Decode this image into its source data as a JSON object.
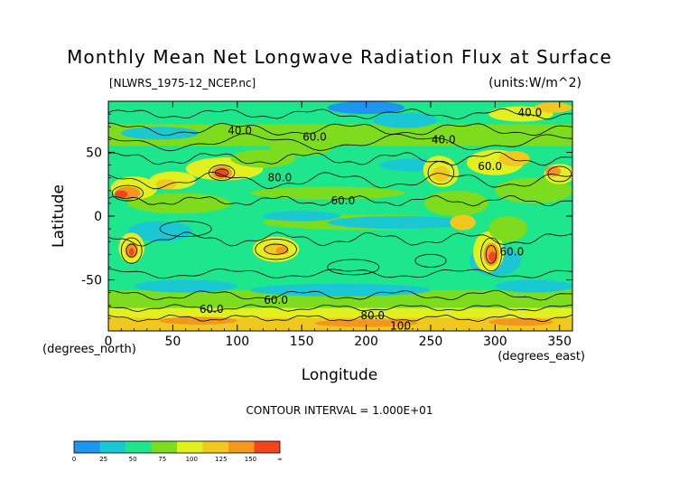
{
  "chart_data": {
    "type": "heatmap",
    "title": "Monthly Mean Net Longwave Radiation Flux at Surface",
    "source_label": "[NLWRS_1975-12_NCEP.nc]",
    "units_label": "(units:W/m^2)",
    "xlabel": "Longitude",
    "ylabel": "Latitude",
    "x_unit_label": "(degrees_east)",
    "y_unit_label": "(degrees_north)",
    "xlim": [
      0,
      360
    ],
    "ylim": [
      -90,
      90
    ],
    "x_ticks": [
      0,
      50,
      100,
      150,
      200,
      250,
      300,
      350
    ],
    "y_ticks": [
      -50,
      0,
      50
    ],
    "contour_interval_text": "CONTOUR INTERVAL = 1.000E+01",
    "contour_labels": [
      {
        "text": "40.0",
        "lon": 102,
        "lat": 67
      },
      {
        "text": "60.0",
        "lon": 160,
        "lat": 62
      },
      {
        "text": "40.0",
        "lon": 260,
        "lat": 60
      },
      {
        "text": "40.0",
        "lon": 327,
        "lat": 81
      },
      {
        "text": "60.0",
        "lon": 296,
        "lat": 39
      },
      {
        "text": "80.0",
        "lon": 133,
        "lat": 30
      },
      {
        "text": "60.0",
        "lon": 182,
        "lat": 12
      },
      {
        "text": "60.0",
        "lon": 130,
        "lat": -66
      },
      {
        "text": "60.0",
        "lon": 80,
        "lat": -73
      },
      {
        "text": "80.0",
        "lon": 205,
        "lat": -78
      },
      {
        "text": "100.",
        "lon": 228,
        "lat": -86
      },
      {
        "text": "60.0",
        "lon": 313,
        "lat": -28
      }
    ],
    "colorbar": {
      "tick_labels": [
        "0",
        "25",
        "50",
        "75",
        "100",
        "125",
        "150",
        "∞"
      ],
      "colors": [
        "#1e96f0",
        "#19c8d2",
        "#1ee68c",
        "#7ddc1e",
        "#e1f01e",
        "#f0c81e",
        "#f5961e",
        "#f0461e",
        "#ff0000"
      ]
    }
  }
}
